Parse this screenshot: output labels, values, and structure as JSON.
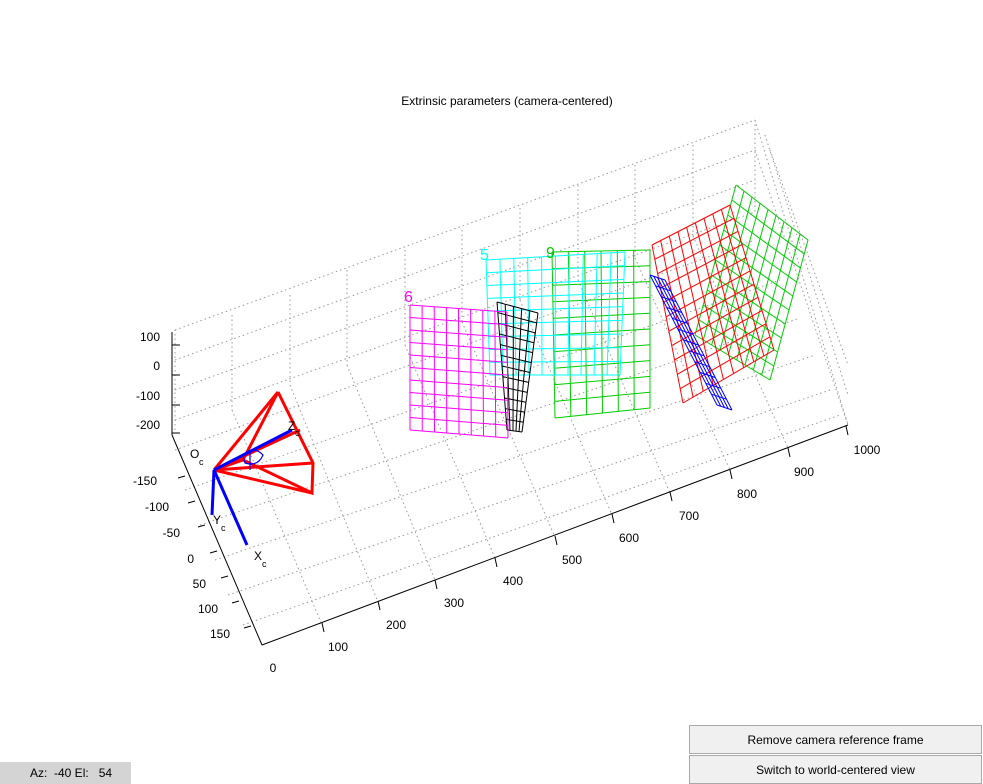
{
  "figure": {
    "title": "Extrinsic parameters (camera-centered)"
  },
  "axes": {
    "z_ticks": [
      "100",
      "0",
      "-100",
      "-200"
    ],
    "y_ticks": [
      "-150",
      "-100",
      "-50",
      "0",
      "50",
      "100",
      "150"
    ],
    "x_ticks": [
      "0",
      "100",
      "200",
      "300",
      "400",
      "500",
      "600",
      "700",
      "800",
      "900",
      "1000"
    ]
  },
  "camera_frame": {
    "origin_label": "O",
    "origin_sub": "c",
    "x_label": "X",
    "x_sub": "c",
    "y_label": "Y",
    "y_sub": "c",
    "z_label": "Z",
    "z_sub": "c",
    "frame_color": "#ff0000",
    "axis_color": "#0000ff"
  },
  "planes": [
    {
      "id": "6",
      "label": "6",
      "color": "#ff00ff"
    },
    {
      "id": "5",
      "label": "5",
      "color": "#00ffff"
    },
    {
      "id": "black",
      "label": "",
      "color": "#000000"
    },
    {
      "id": "green-front",
      "label": "9",
      "color": "#00cc00"
    },
    {
      "id": "red",
      "label": "",
      "color": "#ff0000"
    },
    {
      "id": "blue",
      "label": "",
      "color": "#0000ff"
    },
    {
      "id": "green-back",
      "label": "",
      "color": "#00cc00"
    }
  ],
  "controls": {
    "remove_label": "Remove camera reference frame",
    "switch_label": "Switch to world-centered view"
  },
  "status": {
    "text": "Az:  -40 El:   54"
  }
}
